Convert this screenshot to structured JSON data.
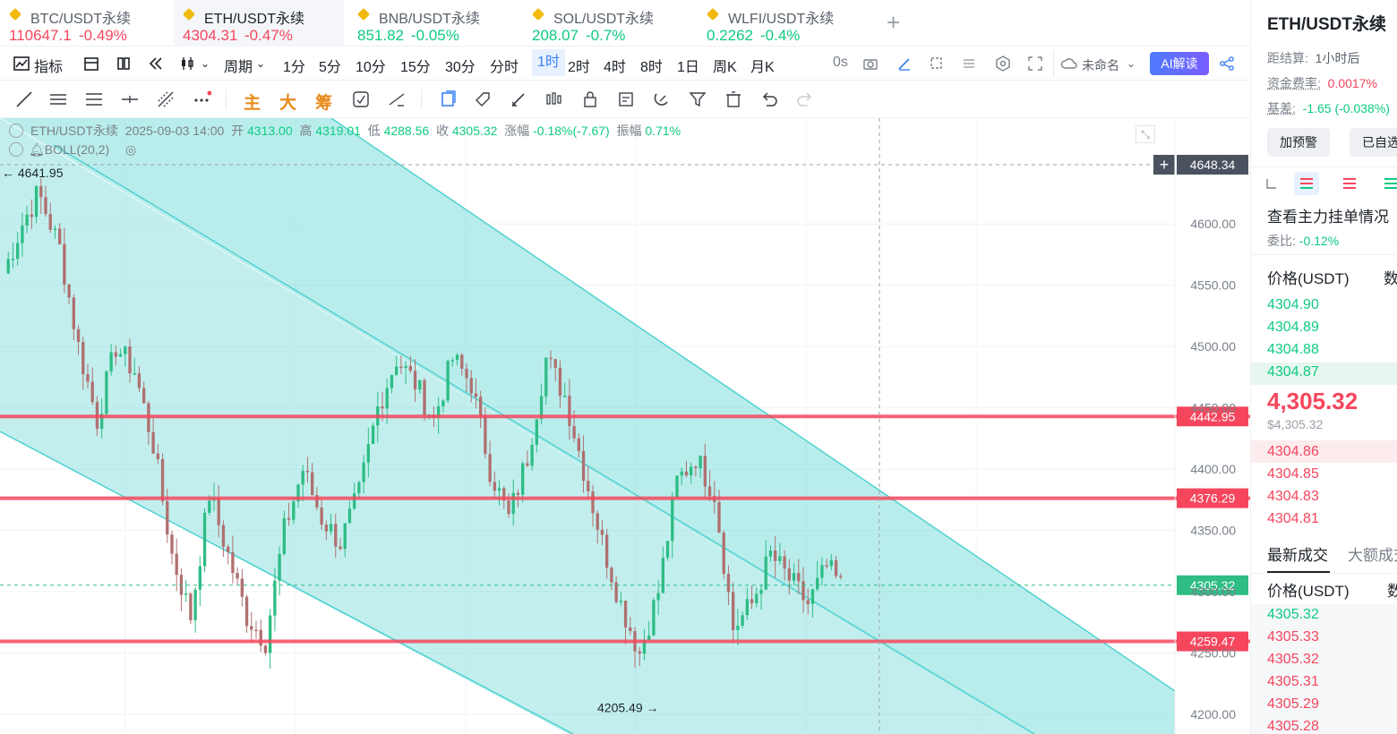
{
  "tabs": [
    {
      "name": "BTC/USDT永续",
      "price": "110647.1",
      "change": "-0.49%",
      "color": "red"
    },
    {
      "name": "ETH/USDT永续",
      "price": "4304.31",
      "change": "-0.47%",
      "color": "red"
    },
    {
      "name": "BNB/USDT永续",
      "price": "851.82",
      "change": "-0.05%",
      "color": "green"
    },
    {
      "name": "SOL/USDT永续",
      "price": "208.07",
      "change": "-0.7%",
      "color": "green"
    },
    {
      "name": "WLFI/USDT永续",
      "price": "0.2262",
      "change": "-0.4%",
      "color": "green"
    }
  ],
  "toolbar": {
    "indicators": "指标",
    "period": "周期",
    "intervals": [
      "1分",
      "5分",
      "10分",
      "15分",
      "30分",
      "分时",
      "1时",
      "2时",
      "4时",
      "8时",
      "1日",
      "周K",
      "月K"
    ],
    "selected_interval": "1时",
    "countdown": "0s",
    "layout_name": "未命名",
    "ai_label": "AI解读"
  },
  "drawbar": {
    "main": "主",
    "big": "大",
    "chips": "筹"
  },
  "chart_info": {
    "symbol": "ETH/USDT永续",
    "time": "2025-09-03 14:00",
    "open_label": "开",
    "open": "4313.00",
    "high_label": "高",
    "high": "4319.01",
    "low_label": "低",
    "low": "4288.56",
    "close_label": "收",
    "close": "4305.32",
    "change_label": "涨幅",
    "change": "-0.18%(-7.67)",
    "amp_label": "振幅",
    "amp": "0.71%",
    "indicator": "BOLL(20,2)"
  },
  "chart_data": {
    "type": "candlestick",
    "y_ticks": [
      "4600.00",
      "4550.00",
      "4500.00",
      "4450.00",
      "4400.00",
      "4350.00",
      "4300.00",
      "4250.00",
      "4200.00"
    ],
    "ylim": [
      4195,
      4670
    ],
    "horizontal_lines": [
      {
        "label": "4442.95",
        "value": 4442.95
      },
      {
        "label": "4376.29",
        "value": 4376.29
      },
      {
        "label": "4259.47",
        "value": 4259.47
      }
    ],
    "crosshair_price": "4648.34",
    "current_price": "4305.32",
    "high_marker": "4641.95",
    "low_marker": "4205.49",
    "colors": {
      "up": "#2ebd85",
      "down": "#b07070",
      "channel": "#4fd2cf",
      "level": "#f6465d"
    }
  },
  "right_panel": {
    "title": "ETH/USDT永续",
    "settle_label": "距结算:",
    "settle_value": "1小时后",
    "funding_label": "资金费率:",
    "funding_value": "0.0017%",
    "basis_label": "基差:",
    "basis_value": "-1.65 (-0.038%)",
    "alert_btn": "加预警",
    "selected_btn": "已自选",
    "orders_title": "查看主力挂单情况",
    "ratio_label": "委比:",
    "ratio_value": "-0.12%",
    "price_header": "价格(USDT)",
    "qty_header": "数",
    "asks": [
      "4304.90",
      "4304.89",
      "4304.88",
      "4304.87"
    ],
    "last_price": "4,305.32",
    "last_usd": "$4,305.32",
    "bids": [
      "4304.86",
      "4304.85",
      "4304.83",
      "4304.81"
    ],
    "trades_tab": "最新成交",
    "big_trades_tab": "大额成交",
    "trade_prices": [
      {
        "p": "4305.32",
        "c": "green"
      },
      {
        "p": "4305.33",
        "c": "red"
      },
      {
        "p": "4305.32",
        "c": "red"
      },
      {
        "p": "4305.31",
        "c": "red"
      },
      {
        "p": "4305.29",
        "c": "red"
      },
      {
        "p": "4305.28",
        "c": "red"
      }
    ]
  }
}
